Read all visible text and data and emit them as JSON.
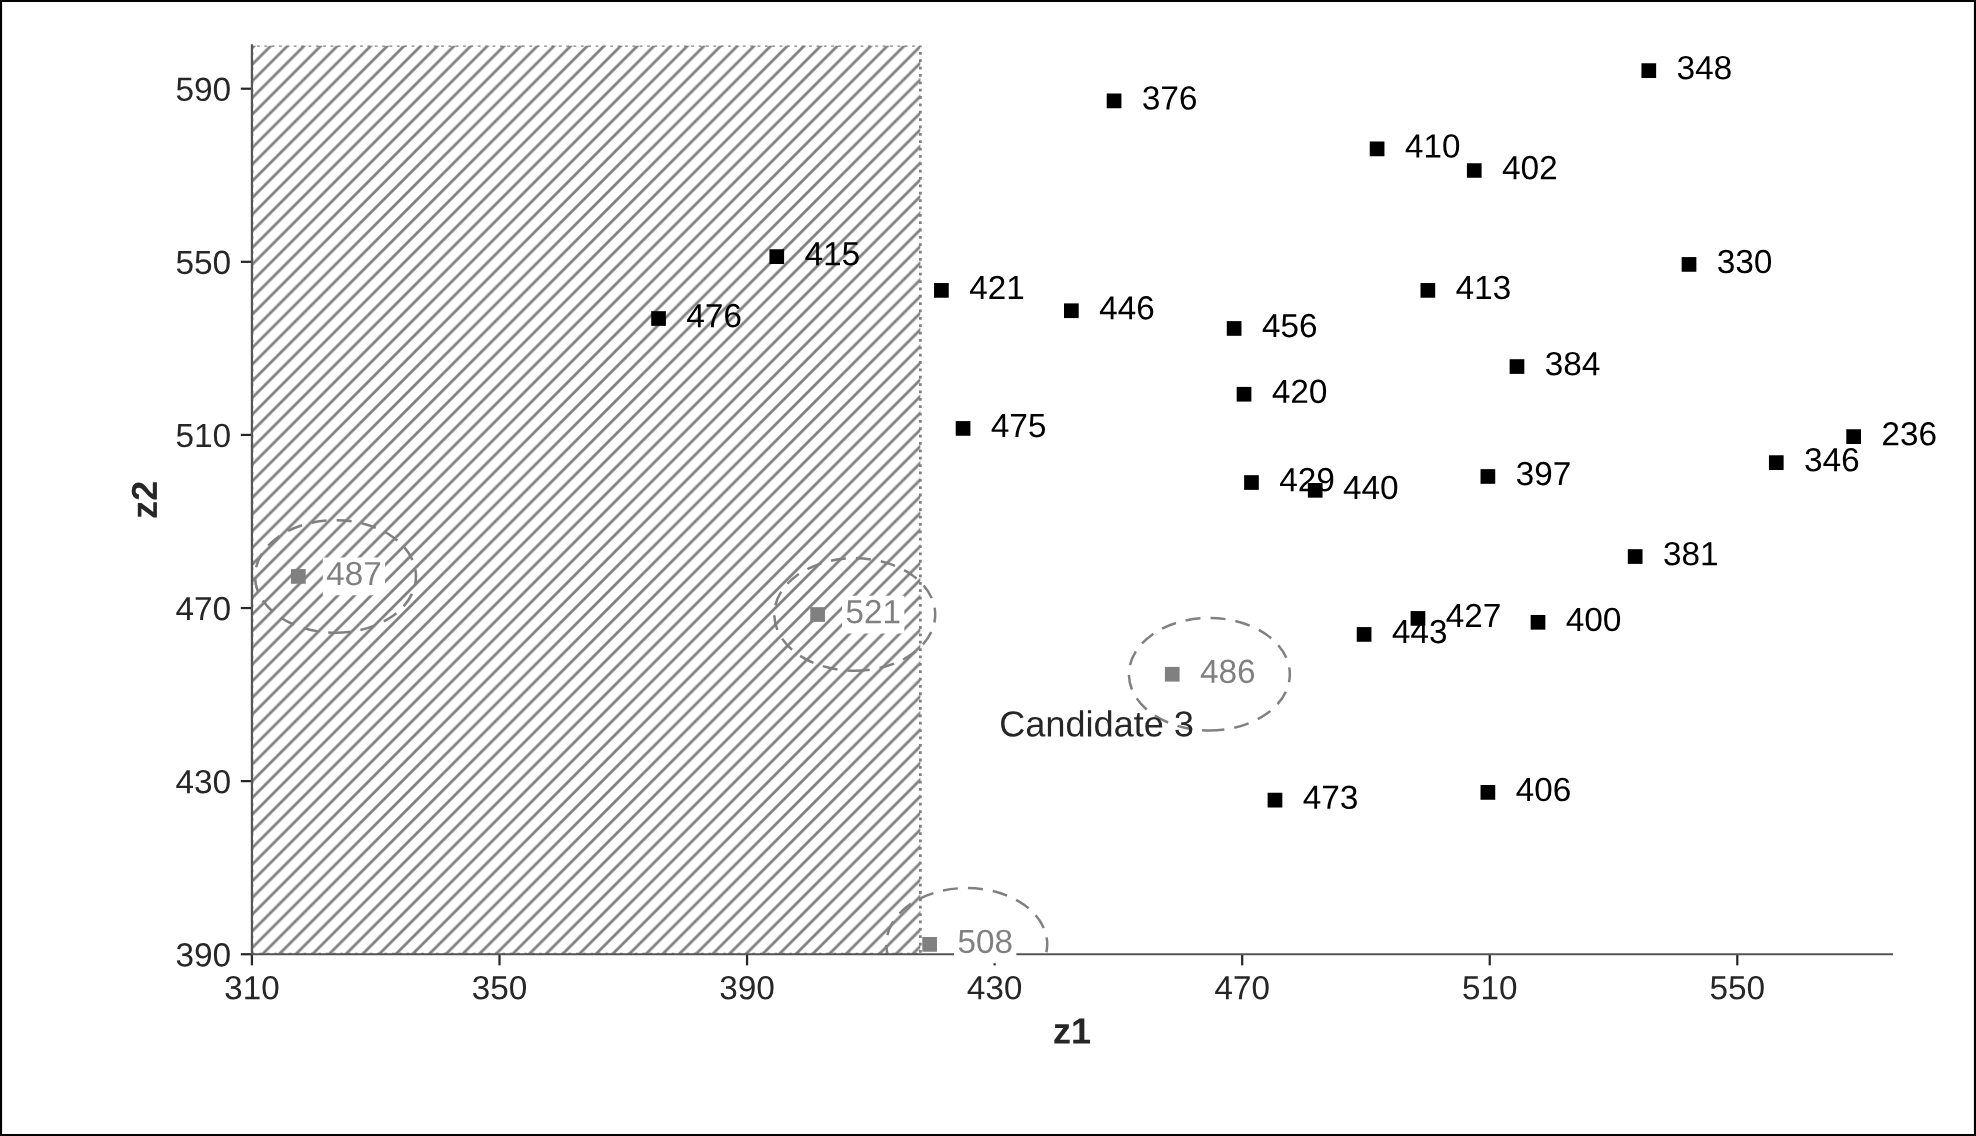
{
  "chart_data": {
    "type": "scatter",
    "xlabel": "z1",
    "ylabel": "z2",
    "xlim": [
      310,
      575
    ],
    "xticks": [
      310,
      350,
      390,
      430,
      470,
      510,
      550
    ],
    "ylim": [
      390,
      600
    ],
    "yticks": [
      390,
      430,
      470,
      510,
      550,
      590
    ],
    "grid": false,
    "marker": "square",
    "bands": [
      {
        "axis": "x",
        "from": 310,
        "to": 418,
        "color": "#808080"
      }
    ],
    "series": [
      {
        "color": "#000000",
        "x": [
          449.3,
          535.7,
          491.8,
          507.5,
          542.2,
          421.4,
          442.4,
          468.7,
          500.0,
          514.4,
          470.3,
          424.9,
          471.5,
          481.8,
          509.7,
          556.3,
          568.8,
          533.5,
          498.4,
          489.7,
          517.8,
          475.3,
          509.7,
          394.8,
          375.7
        ],
        "values": [
          587.2,
          594.2,
          576.1,
          571.1,
          549.4,
          543.4,
          538.7,
          534.6,
          543.4,
          525.8,
          519.4,
          511.5,
          499.0,
          497.2,
          500.4,
          503.6,
          509.6,
          481.9,
          467.6,
          463.9,
          466.7,
          425.6,
          427.4,
          551.2,
          536.9
        ]
      },
      {
        "color": "#808080",
        "x": [
          317.5,
          401.4,
          458.7,
          419.5
        ],
        "values": [
          477.3,
          468.5,
          454.7,
          392.3
        ]
      }
    ],
    "annotations": [
      {
        "text": "376",
        "x": 449.3,
        "y": 587.2
      },
      {
        "text": "348",
        "x": 535.7,
        "y": 594.2
      },
      {
        "text": "410",
        "x": 491.8,
        "y": 576.1
      },
      {
        "text": "402",
        "x": 507.5,
        "y": 571.1
      },
      {
        "text": "330",
        "x": 542.2,
        "y": 549.4
      },
      {
        "text": "421",
        "x": 421.4,
        "y": 543.4
      },
      {
        "text": "446",
        "x": 442.4,
        "y": 538.7
      },
      {
        "text": "456",
        "x": 468.7,
        "y": 534.6
      },
      {
        "text": "413",
        "x": 500.0,
        "y": 543.4
      },
      {
        "text": "384",
        "x": 514.4,
        "y": 525.8
      },
      {
        "text": "420",
        "x": 470.3,
        "y": 519.4
      },
      {
        "text": "475",
        "x": 424.9,
        "y": 511.5
      },
      {
        "text": "429",
        "x": 471.5,
        "y": 499.0
      },
      {
        "text": "440",
        "x": 481.8,
        "y": 497.2
      },
      {
        "text": "397",
        "x": 509.7,
        "y": 500.4
      },
      {
        "text": "346",
        "x": 556.3,
        "y": 503.6
      },
      {
        "text": "236",
        "x": 568.8,
        "y": 509.6
      },
      {
        "text": "381",
        "x": 533.5,
        "y": 481.9
      },
      {
        "text": "427",
        "x": 498.4,
        "y": 467.6
      },
      {
        "text": "443",
        "x": 489.7,
        "y": 463.9
      },
      {
        "text": "400",
        "x": 517.8,
        "y": 466.7
      },
      {
        "text": "473",
        "x": 475.3,
        "y": 425.6
      },
      {
        "text": "406",
        "x": 509.7,
        "y": 427.4
      },
      {
        "text": "415",
        "x": 394.8,
        "y": 551.2
      },
      {
        "text": "476",
        "x": 375.7,
        "y": 536.9
      },
      {
        "text": "487",
        "x": 317.5,
        "y": 477.3
      },
      {
        "text": "521",
        "x": 401.4,
        "y": 468.5
      },
      {
        "text": "486",
        "x": 458.7,
        "y": 454.7
      },
      {
        "text": "508",
        "x": 419.5,
        "y": 392.3
      },
      "Candidate 3"
    ]
  }
}
